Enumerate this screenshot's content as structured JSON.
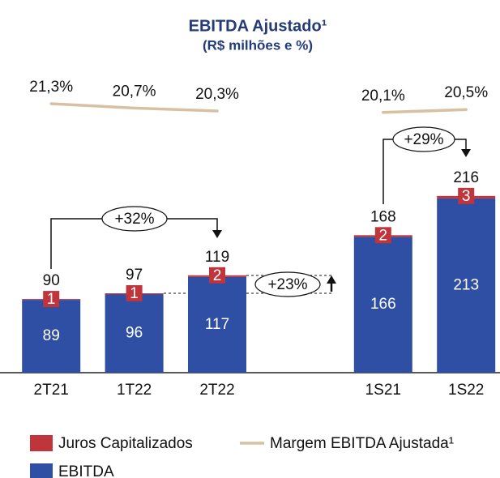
{
  "chart_data": {
    "type": "bar",
    "title": "EBITDA Ajustado¹",
    "subtitle": "(R$ milhões e %)",
    "categories": [
      "2T21",
      "1T22",
      "2T22",
      null,
      "1S21",
      "1S22"
    ],
    "series": [
      {
        "name": "EBITDA",
        "color": "#2e4fa3",
        "values": [
          89,
          96,
          117,
          null,
          166,
          213
        ]
      },
      {
        "name": "Juros Capitalizados",
        "color": "#c0343b",
        "values": [
          1,
          1,
          2,
          null,
          2,
          3
        ]
      }
    ],
    "totals": [
      90,
      97,
      119,
      null,
      168,
      216
    ],
    "line_series": {
      "name": "Margem EBITDA Ajustada¹",
      "color": "#d8c0a3",
      "values": [
        21.3,
        20.7,
        20.3,
        null,
        20.1,
        20.5
      ],
      "value_labels": [
        "21,3%",
        "20,7%",
        "20,3%",
        null,
        "20,1%",
        "20,5%"
      ]
    },
    "annotations": [
      "+32%",
      "+23%",
      "+29%"
    ]
  }
}
